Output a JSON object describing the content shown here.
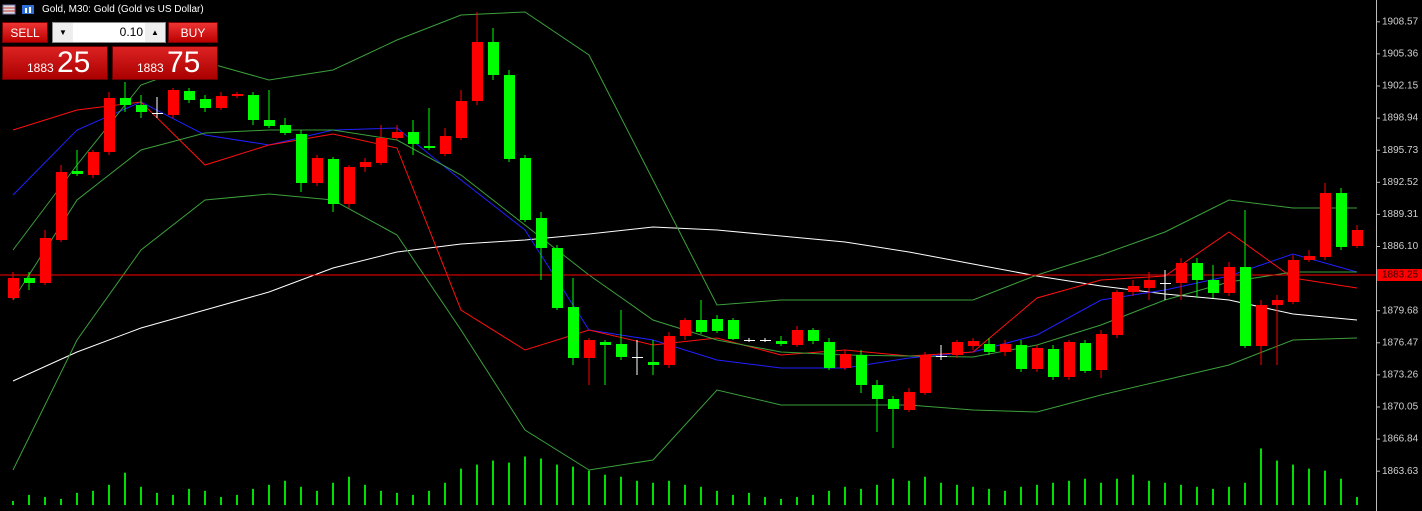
{
  "header": {
    "title": "Gold, M30:  Gold (Gold vs US Dollar)"
  },
  "trade_panel": {
    "sell": "SELL",
    "buy": "BUY",
    "lot": "0.10",
    "bid_main": "1883",
    "bid_pips": "25",
    "ask_main": "1883",
    "ask_pips": "75"
  },
  "chart_data": {
    "type": "candlestick",
    "ylim": [
      1859.65,
      1910.75
    ],
    "yticks": [
      {
        "value": 1908.57,
        "label": "1908.57"
      },
      {
        "value": 1905.36,
        "label": "1905.36"
      },
      {
        "value": 1902.15,
        "label": "1902.15"
      },
      {
        "value": 1898.94,
        "label": "1898.94"
      },
      {
        "value": 1895.73,
        "label": "1895.73"
      },
      {
        "value": 1892.52,
        "label": "1892.52"
      },
      {
        "value": 1889.31,
        "label": "1889.31"
      },
      {
        "value": 1886.1,
        "label": "1886.10"
      },
      {
        "value": 1879.68,
        "label": "1879.68"
      },
      {
        "value": 1876.47,
        "label": "1876.47"
      },
      {
        "value": 1873.26,
        "label": "1873.26"
      },
      {
        "value": 1870.05,
        "label": "1870.05"
      },
      {
        "value": 1866.84,
        "label": "1866.84"
      },
      {
        "value": 1863.63,
        "label": "1863.63"
      }
    ],
    "current_price": 1883.25,
    "current_price_color": "#ff0000",
    "up_color": "#ff0000",
    "down_color": "#00ff00",
    "doji_color": "#ffffff",
    "open": [
      1880.95,
      1882.95,
      1882.45,
      1886.75,
      1893.65,
      1893.25,
      1895.55,
      1900.95,
      1900.25,
      1899.45,
      1899.25,
      1901.65,
      1900.85,
      1899.95,
      1901.15,
      1901.25,
      1898.75,
      1898.25,
      1897.35,
      1892.45,
      1894.85,
      1890.35,
      1894.05,
      1894.45,
      1896.95,
      1897.55,
      1896.15,
      1895.35,
      1896.95,
      1900.65,
      1906.55,
      1903.25,
      1894.95,
      1888.95,
      1885.95,
      1880.05,
      1874.95,
      1876.55,
      1876.35,
      1875.05,
      1874.55,
      1874.25,
      1877.15,
      1878.75,
      1878.85,
      1878.75,
      1876.75,
      1876.75,
      1876.65,
      1876.25,
      1877.75,
      1876.55,
      1873.95,
      1875.25,
      1872.25,
      1870.85,
      1869.75,
      1871.45,
      1875.15,
      1875.25,
      1876.15,
      1876.35,
      1875.55,
      1876.25,
      1873.85,
      1875.85,
      1873.05,
      1876.45,
      1873.75,
      1877.25,
      1881.55,
      1881.95,
      1882.45,
      1882.45,
      1884.45,
      1882.75,
      1881.45,
      1884.05,
      1876.15,
      1880.25,
      1880.55,
      1884.75,
      1885.05,
      1891.45,
      1886.15
    ],
    "high": [
      1883.55,
      1883.55,
      1887.75,
      1894.25,
      1895.75,
      1895.75,
      1901.55,
      1902.55,
      1901.25,
      1901.05,
      1901.95,
      1901.95,
      1901.25,
      1901.55,
      1901.55,
      1901.55,
      1901.75,
      1898.95,
      1897.75,
      1895.25,
      1895.05,
      1894.25,
      1894.95,
      1898.25,
      1898.25,
      1898.75,
      1899.95,
      1897.95,
      1901.75,
      1909.55,
      1907.95,
      1903.75,
      1895.25,
      1889.55,
      1886.25,
      1882.95,
      1876.95,
      1876.75,
      1879.75,
      1876.75,
      1876.75,
      1877.55,
      1878.95,
      1880.75,
      1879.25,
      1878.95,
      1876.95,
      1876.95,
      1877.15,
      1878.15,
      1877.95,
      1876.95,
      1875.75,
      1875.75,
      1872.75,
      1871.15,
      1871.95,
      1875.55,
      1876.25,
      1876.75,
      1876.95,
      1876.95,
      1876.75,
      1876.75,
      1876.25,
      1876.25,
      1876.75,
      1876.75,
      1877.75,
      1881.75,
      1882.75,
      1883.55,
      1883.75,
      1884.95,
      1884.95,
      1884.25,
      1884.55,
      1889.75,
      1880.75,
      1881.25,
      1885.25,
      1885.75,
      1892.45,
      1891.95,
      1888.25
    ],
    "low": [
      1880.75,
      1881.75,
      1882.25,
      1886.55,
      1893.15,
      1892.95,
      1895.25,
      1899.55,
      1898.95,
      1898.95,
      1898.95,
      1900.45,
      1899.55,
      1899.75,
      1900.95,
      1898.25,
      1897.95,
      1897.25,
      1891.55,
      1892.15,
      1889.55,
      1889.95,
      1893.55,
      1894.25,
      1896.75,
      1895.25,
      1895.75,
      1895.15,
      1896.75,
      1900.25,
      1902.75,
      1894.55,
      1888.55,
      1882.75,
      1879.75,
      1874.25,
      1872.25,
      1872.25,
      1874.75,
      1873.25,
      1873.25,
      1873.95,
      1876.75,
      1877.35,
      1877.45,
      1876.75,
      1876.55,
      1876.55,
      1876.15,
      1876.05,
      1876.35,
      1873.75,
      1873.75,
      1871.45,
      1867.55,
      1865.95,
      1869.55,
      1871.25,
      1874.75,
      1874.95,
      1875.75,
      1875.25,
      1875.15,
      1873.55,
      1873.55,
      1872.75,
      1872.75,
      1873.45,
      1872.95,
      1876.95,
      1881.15,
      1880.75,
      1880.75,
      1880.75,
      1880.95,
      1880.95,
      1881.15,
      1875.95,
      1874.25,
      1874.25,
      1880.35,
      1884.55,
      1884.75,
      1885.75,
      1885.95
    ],
    "close": [
      1882.95,
      1882.45,
      1886.95,
      1893.55,
      1893.35,
      1895.55,
      1900.95,
      1900.25,
      1899.55,
      1899.45,
      1901.75,
      1900.75,
      1899.95,
      1901.15,
      1901.35,
      1898.75,
      1898.15,
      1897.45,
      1892.45,
      1894.95,
      1890.35,
      1894.05,
      1894.55,
      1896.95,
      1897.55,
      1896.35,
      1895.95,
      1897.15,
      1900.65,
      1906.55,
      1903.25,
      1894.85,
      1888.75,
      1885.95,
      1879.95,
      1874.95,
      1876.75,
      1876.25,
      1875.05,
      1875.05,
      1874.25,
      1877.15,
      1878.75,
      1877.55,
      1877.65,
      1876.85,
      1876.75,
      1876.75,
      1876.35,
      1877.75,
      1876.65,
      1873.95,
      1875.35,
      1872.25,
      1870.85,
      1869.85,
      1871.55,
      1875.25,
      1875.15,
      1876.55,
      1876.65,
      1875.55,
      1876.35,
      1873.85,
      1875.95,
      1873.05,
      1876.55,
      1873.65,
      1877.35,
      1881.55,
      1882.15,
      1882.75,
      1882.45,
      1884.45,
      1882.75,
      1881.45,
      1884.05,
      1876.15,
      1880.25,
      1880.75,
      1884.75,
      1885.15,
      1891.45,
      1886.05,
      1887.75
    ],
    "volume": [
      4,
      10,
      8,
      6,
      12,
      14,
      20,
      32,
      18,
      12,
      10,
      16,
      14,
      8,
      10,
      16,
      20,
      24,
      18,
      14,
      22,
      28,
      20,
      14,
      12,
      10,
      14,
      22,
      36,
      40,
      44,
      42,
      48,
      46,
      40,
      38,
      34,
      30,
      28,
      24,
      22,
      24,
      20,
      18,
      14,
      10,
      12,
      8,
      6,
      8,
      10,
      14,
      18,
      16,
      20,
      26,
      24,
      28,
      22,
      20,
      18,
      16,
      14,
      18,
      20,
      22,
      24,
      26,
      22,
      26,
      30,
      24,
      22,
      20,
      18,
      16,
      18,
      22,
      56,
      44,
      40,
      36,
      34,
      26,
      8
    ],
    "volume_color": "#00e000",
    "y2lim": [
      0,
      500
    ],
    "lines": [
      {
        "color": "#ffffff",
        "x": [
          0,
          4,
          8,
          12,
          16,
          20,
          24,
          28,
          32,
          36,
          40,
          44,
          48,
          52,
          56,
          60,
          64,
          68,
          72,
          76,
          80,
          84
        ],
        "values": [
          1872.65,
          1875.55,
          1877.95,
          1879.75,
          1881.55,
          1883.95,
          1885.55,
          1886.35,
          1886.75,
          1887.35,
          1888.05,
          1887.75,
          1887.15,
          1886.55,
          1885.55,
          1884.35,
          1883.15,
          1882.15,
          1881.35,
          1880.75,
          1879.35,
          1878.75
        ]
      },
      {
        "color": "#2020ff",
        "x": [
          0,
          4,
          8,
          12,
          16,
          20,
          24,
          28,
          32,
          36,
          40,
          44,
          48,
          52,
          56,
          60,
          64,
          68,
          72,
          76,
          80,
          84
        ],
        "values": [
          1891.25,
          1897.75,
          1900.55,
          1897.25,
          1896.25,
          1897.75,
          1897.95,
          1892.75,
          1887.75,
          1877.75,
          1876.75,
          1874.75,
          1873.95,
          1873.95,
          1874.95,
          1875.55,
          1877.25,
          1880.75,
          1881.75,
          1883.15,
          1885.35,
          1883.55
        ]
      },
      {
        "color": "#ff1010",
        "x": [
          0,
          4,
          8,
          12,
          16,
          20,
          24,
          28,
          32,
          36,
          40,
          44,
          48,
          52,
          56,
          60,
          64,
          68,
          72,
          76,
          80,
          84
        ],
        "values": [
          1897.75,
          1899.75,
          1900.55,
          1894.25,
          1896.25,
          1897.35,
          1895.95,
          1879.75,
          1875.75,
          1877.75,
          1876.25,
          1876.95,
          1875.25,
          1875.75,
          1875.15,
          1875.55,
          1880.95,
          1882.75,
          1883.15,
          1887.55,
          1882.95,
          1881.95
        ]
      },
      {
        "color": "#3ca03c",
        "x": [
          0,
          4,
          8,
          12,
          16,
          20,
          24,
          28,
          32,
          36,
          40,
          44,
          48,
          52,
          56,
          60,
          64,
          68,
          72,
          76,
          80,
          84
        ],
        "values": [
          1885.75,
          1894.25,
          1902.25,
          1904.55,
          1902.75,
          1903.75,
          1906.75,
          1909.25,
          1909.55,
          1905.25,
          1892.75,
          1880.25,
          1880.75,
          1880.75,
          1880.75,
          1880.75,
          1883.25,
          1885.25,
          1887.55,
          1890.75,
          1889.95,
          1889.95
        ]
      },
      {
        "color": "#3ca03c",
        "x": [
          0,
          4,
          8,
          12,
          16,
          20,
          24,
          28,
          32,
          36,
          40,
          44,
          48,
          52,
          56,
          60,
          64,
          68,
          72,
          76,
          80,
          84
        ],
        "values": [
          1880.75,
          1890.75,
          1895.75,
          1897.45,
          1897.75,
          1897.75,
          1896.75,
          1893.25,
          1888.25,
          1883.25,
          1878.75,
          1876.75,
          1875.55,
          1875.25,
          1875.15,
          1875.05,
          1876.25,
          1878.25,
          1880.75,
          1882.55,
          1883.55,
          1883.55
        ]
      },
      {
        "color": "#3ca03c",
        "x": [
          0,
          4,
          8,
          12,
          16,
          20,
          24,
          28,
          32,
          36,
          40,
          44,
          48,
          52,
          56,
          60,
          64,
          68,
          72,
          76,
          80,
          84
        ],
        "values": [
          1863.75,
          1876.75,
          1885.75,
          1890.75,
          1891.35,
          1890.75,
          1887.25,
          1877.75,
          1867.75,
          1863.75,
          1864.75,
          1871.75,
          1870.25,
          1870.25,
          1870.25,
          1869.75,
          1869.55,
          1871.25,
          1872.75,
          1874.25,
          1876.75,
          1876.95
        ]
      }
    ]
  }
}
